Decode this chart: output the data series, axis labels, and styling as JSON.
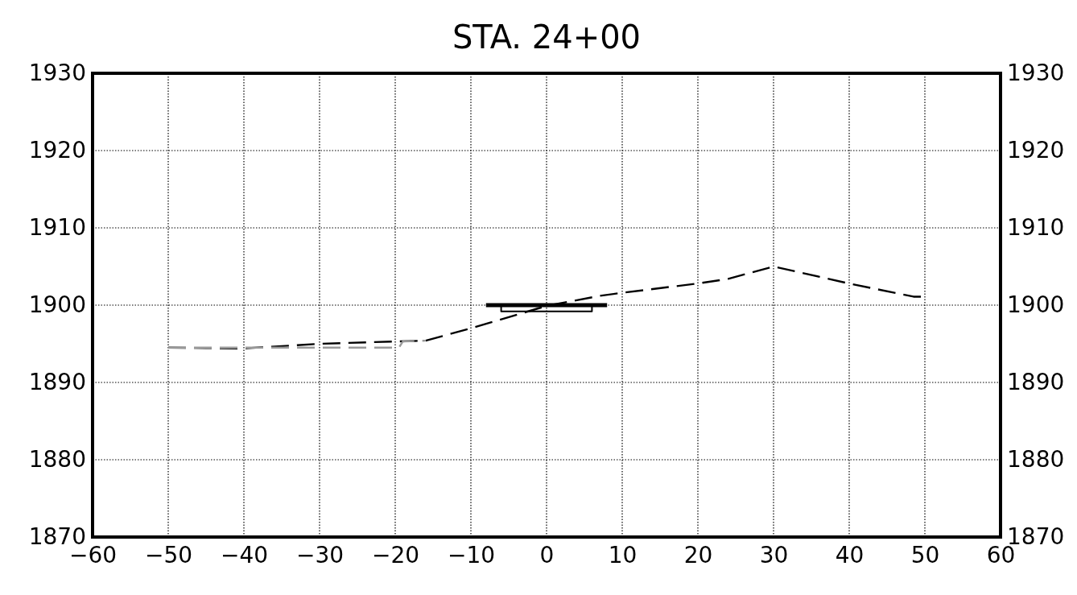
{
  "chart_data": {
    "type": "line",
    "title": "STA. 24+00",
    "xlim": [
      -60,
      60
    ],
    "xticks": [
      -60,
      -50,
      -40,
      -30,
      -20,
      -10,
      0,
      10,
      20,
      30,
      40,
      50,
      60
    ],
    "ylim": [
      1870,
      1930
    ],
    "yticks": [
      1870,
      1880,
      1890,
      1900,
      1910,
      1920,
      1930
    ],
    "y2lim": [
      1870,
      1930
    ],
    "y2ticks": [
      1870,
      1880,
      1890,
      1900,
      1910,
      1920,
      1930
    ],
    "grid": true,
    "marker": "none",
    "series": [
      {
        "color": "#000000",
        "line_style": "dashed",
        "x": [
          -50,
          -40,
          -30,
          -20,
          -16,
          -10,
          0,
          7,
          10,
          20,
          24,
          30,
          40,
          48.5,
          50
        ],
        "values": [
          1894.5,
          1894.4,
          1895.0,
          1895.3,
          1895.4,
          1897.0,
          1899.9,
          1901.2,
          1901.6,
          1902.8,
          1903.4,
          1905.0,
          1902.8,
          1901.1,
          1901.1
        ]
      },
      {
        "color": "#999999",
        "line_style": "dashed",
        "x": [
          -50,
          -40,
          -19.5,
          -19,
          -16
        ],
        "values": [
          1894.5,
          1894.5,
          1894.5,
          1895.3,
          1895.4
        ]
      },
      {
        "color": "#000000",
        "line_style": "solid",
        "x": [
          -8,
          8
        ],
        "values": [
          1900,
          1900
        ]
      },
      {
        "color": "#000000",
        "line_style": "solid",
        "x": [
          -6,
          -6,
          6,
          6
        ],
        "values": [
          1899.8,
          1899.2,
          1899.2,
          1899.8
        ]
      }
    ]
  }
}
